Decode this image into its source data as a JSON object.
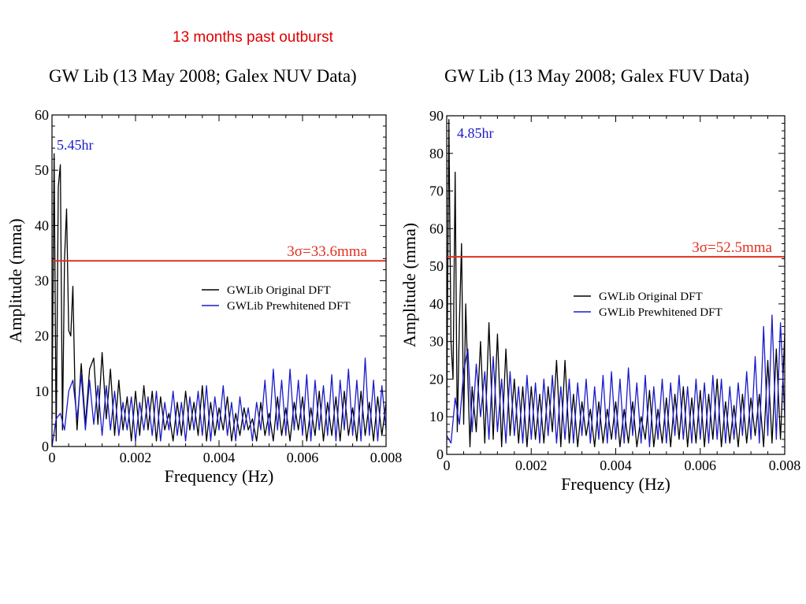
{
  "headline": "13 months past outburst",
  "chart_data": [
    {
      "type": "line",
      "title": "GW Lib (13 May 2008; Galex NUV Data)",
      "xlabel": "Frequency (Hz)",
      "ylabel": "Amplitude (mma)",
      "xlim": [
        0,
        0.008
      ],
      "ylim": [
        0,
        60
      ],
      "xticks": [
        0,
        0.002,
        0.004,
        0.006,
        0.008
      ],
      "xtick_labels": [
        "0",
        "0.002",
        "0.004",
        "0.006",
        "0.008"
      ],
      "yticks": [
        0,
        10,
        20,
        30,
        40,
        50,
        60
      ],
      "ytick_labels": [
        "0",
        "10",
        "20",
        "30",
        "40",
        "50",
        "60"
      ],
      "grid": false,
      "legend_position": "middle-right",
      "threshold": {
        "value": 33.6,
        "label": "3σ=33.6mma",
        "color": "#e03020"
      },
      "annotations": [
        {
          "text": "5.45hr",
          "x": 5e-05,
          "y": 53,
          "color": "#1a1acc"
        }
      ],
      "series": [
        {
          "name": "GWLib Original DFT",
          "color": "#000000",
          "x": [
            0,
            5e-05,
            0.0001,
            0.00015,
            0.0002,
            0.00025,
            0.0003,
            0.00035,
            0.0004,
            0.00045,
            0.0005,
            0.00055,
            0.0006,
            0.0007,
            0.0008,
            0.0009,
            0.001,
            0.0011,
            0.0012,
            0.0013,
            0.0014,
            0.0015,
            0.0016,
            0.0017,
            0.0018,
            0.0019,
            0.002,
            0.0021,
            0.0022,
            0.0023,
            0.0024,
            0.0025,
            0.0026,
            0.0027,
            0.0028,
            0.0029,
            0.003,
            0.0031,
            0.0032,
            0.0033,
            0.0034,
            0.0035,
            0.0036,
            0.0037,
            0.0038,
            0.0039,
            0.004,
            0.0041,
            0.0042,
            0.0043,
            0.0044,
            0.0045,
            0.0046,
            0.0047,
            0.0048,
            0.0049,
            0.005,
            0.0051,
            0.0052,
            0.0053,
            0.0054,
            0.0055,
            0.0056,
            0.0057,
            0.0058,
            0.0059,
            0.006,
            0.0061,
            0.0062,
            0.0063,
            0.0064,
            0.0065,
            0.0066,
            0.0067,
            0.0068,
            0.0069,
            0.007,
            0.0071,
            0.0072,
            0.0073,
            0.0074,
            0.0075,
            0.0076,
            0.0077,
            0.0078,
            0.0079,
            0.008
          ],
          "values": [
            5,
            53,
            1,
            47,
            51,
            3,
            34,
            43,
            21,
            20,
            29,
            10,
            3,
            15,
            4,
            14,
            16,
            4,
            17,
            5,
            14,
            2,
            12,
            3,
            9,
            1,
            10,
            2,
            11,
            3,
            10,
            1,
            9,
            3,
            6,
            1,
            8,
            2,
            10,
            3,
            8,
            2,
            11,
            1,
            8,
            2,
            7,
            3,
            9,
            1,
            6,
            2,
            7,
            3,
            5,
            1,
            8,
            2,
            6,
            1,
            9,
            2,
            7,
            1,
            8,
            3,
            9,
            1,
            7,
            2,
            10,
            1,
            8,
            2,
            9,
            1,
            10,
            2,
            7,
            1,
            10,
            2,
            8,
            1,
            9,
            2,
            8
          ]
        },
        {
          "name": "GWLib Prewhitened DFT",
          "color": "#1a1acc",
          "x": [
            0,
            0.0001,
            0.0002,
            0.0003,
            0.0004,
            0.0005,
            0.0006,
            0.0007,
            0.0008,
            0.0009,
            0.001,
            0.0011,
            0.0012,
            0.0013,
            0.0014,
            0.0015,
            0.0016,
            0.0017,
            0.0018,
            0.0019,
            0.002,
            0.0021,
            0.0022,
            0.0023,
            0.0024,
            0.0025,
            0.0026,
            0.0027,
            0.0028,
            0.0029,
            0.003,
            0.0031,
            0.0032,
            0.0033,
            0.0034,
            0.0035,
            0.0036,
            0.0037,
            0.0038,
            0.0039,
            0.004,
            0.0041,
            0.0042,
            0.0043,
            0.0044,
            0.0045,
            0.0046,
            0.0047,
            0.0048,
            0.0049,
            0.005,
            0.0051,
            0.0052,
            0.0053,
            0.0054,
            0.0055,
            0.0056,
            0.0057,
            0.0058,
            0.0059,
            0.006,
            0.0061,
            0.0062,
            0.0063,
            0.0064,
            0.0065,
            0.0066,
            0.0067,
            0.0068,
            0.0069,
            0.007,
            0.0071,
            0.0072,
            0.0073,
            0.0074,
            0.0075,
            0.0076,
            0.0077,
            0.0078,
            0.0079,
            0.008
          ],
          "values": [
            0,
            5,
            6,
            3,
            10,
            12,
            5,
            13,
            3,
            12,
            4,
            11,
            2,
            11,
            3,
            10,
            2,
            8,
            3,
            9,
            1,
            8,
            3,
            9,
            2,
            10,
            1,
            8,
            3,
            10,
            2,
            8,
            1,
            9,
            3,
            10,
            2,
            11,
            1,
            9,
            3,
            11,
            2,
            8,
            1,
            9,
            3,
            7,
            1,
            8,
            3,
            12,
            2,
            14,
            3,
            12,
            2,
            14,
            3,
            12,
            2,
            13,
            1,
            12,
            3,
            11,
            2,
            13,
            1,
            12,
            3,
            14,
            2,
            12,
            1,
            16,
            2,
            12,
            1,
            11,
            3
          ]
        }
      ]
    },
    {
      "type": "line",
      "title": "GW Lib (13 May 2008; Galex FUV Data)",
      "xlabel": "Frequency (Hz)",
      "ylabel": "Amplitude (mma)",
      "xlim": [
        0,
        0.008
      ],
      "ylim": [
        0,
        90
      ],
      "xticks": [
        0,
        0.002,
        0.004,
        0.006,
        0.008
      ],
      "xtick_labels": [
        "0",
        "0.002",
        "0.004",
        "0.006",
        "0.008"
      ],
      "yticks": [
        0,
        10,
        20,
        30,
        40,
        50,
        60,
        70,
        80,
        90
      ],
      "ytick_labels": [
        "0",
        "10",
        "20",
        "30",
        "40",
        "50",
        "60",
        "70",
        "80",
        "90"
      ],
      "grid": false,
      "legend_position": "middle-right",
      "threshold": {
        "value": 52.5,
        "label": "3σ=52.5mma",
        "color": "#e03020"
      },
      "annotations": [
        {
          "text": "4.85hr",
          "x": 5e-05,
          "y": 88,
          "color": "#1a1acc"
        }
      ],
      "series": [
        {
          "name": "GWLib Original DFT",
          "color": "#000000",
          "x": [
            0,
            5e-05,
            0.0001,
            0.00015,
            0.0002,
            0.00025,
            0.0003,
            0.00035,
            0.0004,
            0.00045,
            0.0005,
            0.00055,
            0.0006,
            0.0007,
            0.0008,
            0.0009,
            0.001,
            0.0011,
            0.0012,
            0.0013,
            0.0014,
            0.0015,
            0.0016,
            0.0017,
            0.0018,
            0.0019,
            0.002,
            0.0021,
            0.0022,
            0.0023,
            0.0024,
            0.0025,
            0.0026,
            0.0027,
            0.0028,
            0.0029,
            0.003,
            0.0031,
            0.0032,
            0.0033,
            0.0034,
            0.0035,
            0.0036,
            0.0037,
            0.0038,
            0.0039,
            0.004,
            0.0041,
            0.0042,
            0.0043,
            0.0044,
            0.0045,
            0.0046,
            0.0047,
            0.0048,
            0.0049,
            0.005,
            0.0051,
            0.0052,
            0.0053,
            0.0054,
            0.0055,
            0.0056,
            0.0057,
            0.0058,
            0.0059,
            0.006,
            0.0061,
            0.0062,
            0.0063,
            0.0064,
            0.0065,
            0.0066,
            0.0067,
            0.0068,
            0.0069,
            0.007,
            0.0071,
            0.0072,
            0.0073,
            0.0074,
            0.0075,
            0.0076,
            0.0077,
            0.0078,
            0.0079,
            0.008
          ],
          "values": [
            10,
            89,
            30,
            20,
            75,
            6,
            35,
            56,
            8,
            40,
            20,
            2,
            18,
            6,
            30,
            3,
            35,
            4,
            32,
            2,
            28,
            5,
            20,
            3,
            18,
            2,
            18,
            4,
            16,
            3,
            18,
            6,
            25,
            2,
            25,
            3,
            16,
            2,
            14,
            5,
            12,
            2,
            14,
            3,
            12,
            4,
            14,
            2,
            12,
            3,
            14,
            2,
            10,
            4,
            17,
            2,
            12,
            3,
            15,
            2,
            16,
            4,
            18,
            2,
            15,
            3,
            17,
            2,
            16,
            4,
            20,
            2,
            14,
            3,
            13,
            2,
            16,
            3,
            15,
            5,
            16,
            2,
            25,
            3,
            28,
            4,
            32
          ]
        },
        {
          "name": "GWLib Prewhitened DFT",
          "color": "#1a1acc",
          "x": [
            0,
            0.0001,
            0.0002,
            0.0003,
            0.0004,
            0.0005,
            0.0006,
            0.0007,
            0.0008,
            0.0009,
            0.001,
            0.0011,
            0.0012,
            0.0013,
            0.0014,
            0.0015,
            0.0016,
            0.0017,
            0.0018,
            0.0019,
            0.002,
            0.0021,
            0.0022,
            0.0023,
            0.0024,
            0.0025,
            0.0026,
            0.0027,
            0.0028,
            0.0029,
            0.003,
            0.0031,
            0.0032,
            0.0033,
            0.0034,
            0.0035,
            0.0036,
            0.0037,
            0.0038,
            0.0039,
            0.004,
            0.0041,
            0.0042,
            0.0043,
            0.0044,
            0.0045,
            0.0046,
            0.0047,
            0.0048,
            0.0049,
            0.005,
            0.0051,
            0.0052,
            0.0053,
            0.0054,
            0.0055,
            0.0056,
            0.0057,
            0.0058,
            0.0059,
            0.006,
            0.0061,
            0.0062,
            0.0063,
            0.0064,
            0.0065,
            0.0066,
            0.0067,
            0.0068,
            0.0069,
            0.007,
            0.0071,
            0.0072,
            0.0073,
            0.0074,
            0.0075,
            0.0076,
            0.0077,
            0.0078,
            0.0079,
            0.008
          ],
          "values": [
            5,
            3,
            15,
            8,
            22,
            28,
            6,
            24,
            10,
            22,
            4,
            26,
            6,
            20,
            3,
            22,
            5,
            18,
            3,
            21,
            4,
            19,
            3,
            20,
            5,
            21,
            3,
            18,
            4,
            20,
            3,
            19,
            5,
            20,
            3,
            18,
            4,
            21,
            3,
            22,
            4,
            20,
            3,
            23,
            5,
            19,
            3,
            21,
            2,
            18,
            4,
            20,
            3,
            19,
            5,
            21,
            4,
            18,
            3,
            20,
            4,
            19,
            3,
            21,
            4,
            20,
            3,
            18,
            4,
            19,
            5,
            22,
            4,
            26,
            3,
            34,
            5,
            37,
            4,
            35,
            10
          ]
        }
      ]
    }
  ]
}
